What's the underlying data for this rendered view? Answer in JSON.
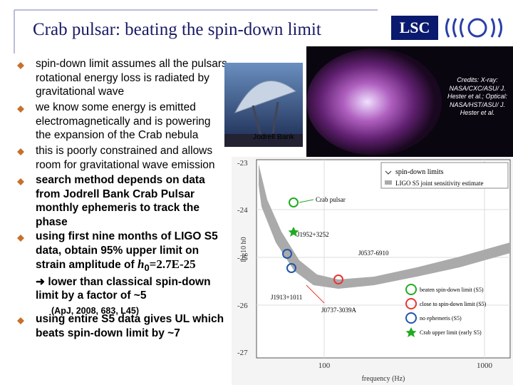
{
  "header": {
    "title": "Crab pulsar:  beating the spin-down limit",
    "logo": "LSC"
  },
  "bullets": [
    "spin-down limit assumes all the pulsars rotational energy loss is radiated by gravitational wave",
    "we know some energy is emitted electromagnetically and is powering the expansion of the Crab nebula",
    "this is poorly constrained and allows room for gravitational wave emission",
    "search method depends on data from Jodrell Bank Crab Pulsar monthly ephemeris to track the phase",
    "using entire S5 data gives UL which beats spin-down limit by ~7"
  ],
  "bullet5": {
    "text": "using first nine months of LIGO S5 data, obtain 95% upper limit on strain amplitude of",
    "symbol": "h",
    "subscript": "0",
    "value": "=2.7E-25",
    "subpoint": "lower than classical spin-down limit by a factor of ~5",
    "reference": "(ApJ, 2008, 683, L45)"
  },
  "images": {
    "jodrell_caption": "Jodrell Bank",
    "credits": "Credits: X-ray: NASA/CXC/ASU/ J. Hester et al.; Optical: NASA/HST/ASU/ J. Hester et al."
  },
  "plot": {
    "yticks": [
      "-23",
      "-24",
      "-25",
      "-26",
      "-27"
    ],
    "xticks": [
      "100",
      "1000"
    ],
    "xlabel": "frequency (Hz)",
    "ylabel": "log10 h0",
    "legend_top": [
      "spin-down limits",
      "LIGO S5 joint sensitivity estimate"
    ],
    "pulsars": [
      "Crab pulsar",
      "J1952+3252",
      "J0537-6910",
      "J1913+1011",
      "J0737-3039A"
    ],
    "legend_bottom": [
      "beaten spin-down limit (S5)",
      "close to spin-down limit (S5)",
      "no ephemeris (S5)",
      "Crab upper limit (early S5)"
    ]
  }
}
